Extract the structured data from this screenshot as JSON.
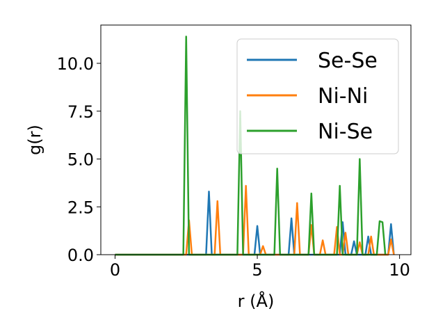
{
  "chart_data": {
    "type": "line",
    "title": "",
    "xlabel": "r (Å)",
    "ylabel": "g(r)",
    "xlim": [
      -0.5,
      10.4
    ],
    "ylim": [
      0,
      12
    ],
    "xticks": [
      0,
      5,
      10
    ],
    "xtick_labels": [
      "0",
      "5",
      "10"
    ],
    "yticks": [
      0,
      2.5,
      5,
      7.5,
      10
    ],
    "ytick_labels": [
      "0.0",
      "2.5",
      "5.0",
      "7.5",
      "10.0"
    ],
    "grid": false,
    "legend_position": "upper right",
    "series": [
      {
        "name": "Se-Se",
        "color": "#1f77b4",
        "x": [
          0,
          3.2,
          3.3,
          3.4,
          4.9,
          5.0,
          5.1,
          6.1,
          6.2,
          6.3,
          7.9,
          8.0,
          8.1,
          8.3,
          8.4,
          8.5,
          8.8,
          8.9,
          9.0,
          9.6,
          9.7,
          9.8
        ],
        "y": [
          0,
          0,
          3.3,
          0,
          0,
          1.5,
          0,
          0,
          1.9,
          0,
          0,
          1.7,
          0,
          0,
          0.7,
          0,
          0,
          0.95,
          0,
          0,
          1.6,
          0
        ]
      },
      {
        "name": "Ni-Ni",
        "color": "#ff7f0e",
        "x": [
          0,
          2.5,
          2.6,
          2.7,
          3.5,
          3.6,
          3.7,
          4.5,
          4.6,
          4.7,
          5.1,
          5.2,
          5.3,
          6.3,
          6.4,
          6.5,
          6.8,
          6.9,
          7.0,
          7.2,
          7.3,
          7.4,
          7.7,
          7.8,
          7.9,
          8.0,
          8.1,
          8.2,
          8.5,
          8.6,
          8.7,
          8.9,
          9.0,
          9.1,
          9.6,
          9.7,
          9.8
        ],
        "y": [
          0,
          0,
          1.8,
          0,
          0,
          2.8,
          0,
          0,
          3.6,
          0,
          0,
          0.45,
          0,
          0,
          2.7,
          0,
          0,
          1.55,
          0,
          0,
          0.75,
          0,
          0,
          1.45,
          0,
          0,
          1.15,
          0,
          0,
          0.65,
          0,
          0,
          0.95,
          0,
          0,
          0.8,
          0
        ]
      },
      {
        "name": "Ni-Se",
        "color": "#2ca02c",
        "x": [
          0,
          2.4,
          2.5,
          2.6,
          4.3,
          4.4,
          4.5,
          5.6,
          5.7,
          5.8,
          6.8,
          6.9,
          7.0,
          7.8,
          7.9,
          8.0,
          8.5,
          8.6,
          8.7,
          9.2,
          9.3,
          9.4,
          9.5
        ],
        "y": [
          0,
          0,
          11.4,
          0,
          0,
          7.5,
          0,
          0,
          4.5,
          0,
          0,
          3.2,
          0,
          0,
          3.6,
          0,
          0,
          5.0,
          0,
          0,
          1.75,
          1.7,
          0
        ]
      }
    ]
  }
}
